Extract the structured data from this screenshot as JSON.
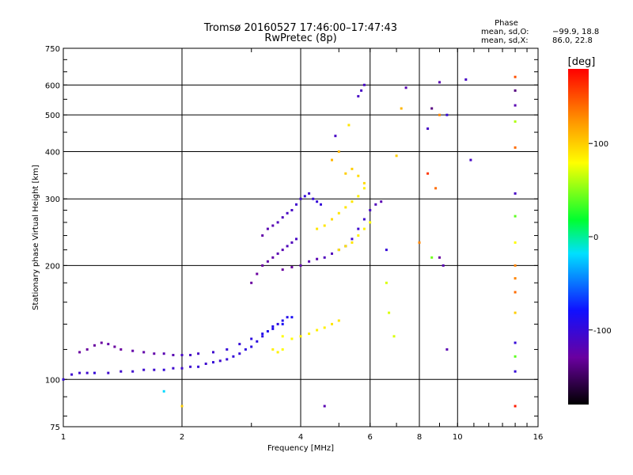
{
  "chart_data": {
    "type": "scatter",
    "title": "Tromsø 20160527 17:46:00–17:47:43",
    "subtitle": "RwPretec (8p)",
    "xlabel": "Frequency [MHz]",
    "ylabel": "Stationary phase Virtual Height [km]",
    "x_scale": "log",
    "y_scale": "log",
    "xlim": [
      1,
      16
    ],
    "ylim": [
      75,
      750
    ],
    "x_ticks": [
      1,
      2,
      4,
      6,
      8,
      10,
      16
    ],
    "x_tick_labels": [
      "1",
      "2",
      "4",
      "6",
      "8",
      "10",
      "16"
    ],
    "y_ticks": [
      75,
      100,
      200,
      300,
      400,
      500,
      600,
      750
    ],
    "y_tick_labels": [
      "75",
      "100",
      "200",
      "300",
      "400",
      "500",
      "600",
      "750"
    ],
    "grid": true,
    "color_scale": {
      "label": "[deg]",
      "range": [
        -180,
        180
      ],
      "ticks": [
        100,
        0,
        -100
      ],
      "tick_labels": [
        "100",
        "0",
        "-100"
      ],
      "stops": [
        "#000000",
        "#6a00a0",
        "#1010ff",
        "#00e0ff",
        "#00ff30",
        "#ffff00",
        "#ff9000",
        "#ff0000"
      ]
    },
    "phase_stats": {
      "title": "Phase",
      "o_label": "mean, sd,O:",
      "o_values": "−99.9, 18.8",
      "x_label": "mean, sd,X:",
      "x_values": "86.0, 22.8"
    },
    "series": [
      {
        "comment_free": true,
        "points": [
          [
            1.0,
            100,
            -100
          ],
          [
            1.05,
            103,
            -105
          ],
          [
            1.1,
            104,
            -105
          ],
          [
            1.15,
            104,
            -105
          ],
          [
            1.2,
            104,
            -100
          ],
          [
            1.3,
            104,
            -105
          ],
          [
            1.4,
            105,
            -105
          ],
          [
            1.5,
            105,
            -105
          ],
          [
            1.6,
            106,
            -105
          ],
          [
            1.7,
            106,
            -105
          ],
          [
            1.8,
            106,
            -100
          ],
          [
            1.9,
            107,
            -105
          ],
          [
            2.0,
            107,
            -105
          ],
          [
            2.1,
            108,
            -105
          ],
          [
            2.2,
            108,
            -100
          ],
          [
            2.3,
            110,
            -105
          ],
          [
            2.4,
            111,
            -100
          ],
          [
            2.5,
            112,
            -105
          ],
          [
            2.6,
            113,
            -100
          ],
          [
            2.7,
            115,
            -100
          ],
          [
            2.8,
            117,
            -100
          ],
          [
            2.9,
            120,
            -95
          ],
          [
            3.0,
            122,
            -95
          ],
          [
            3.1,
            126,
            -95
          ],
          [
            3.2,
            130,
            -95
          ],
          [
            3.3,
            134,
            -90
          ],
          [
            3.4,
            138,
            -90
          ],
          [
            3.5,
            140,
            -95
          ],
          [
            3.6,
            143,
            -90
          ],
          [
            3.7,
            146,
            -90
          ],
          [
            1.1,
            118,
            -130
          ],
          [
            1.15,
            120,
            -130
          ],
          [
            1.2,
            123,
            -130
          ],
          [
            1.25,
            125,
            -130
          ],
          [
            1.3,
            124,
            -125
          ],
          [
            1.35,
            122,
            -130
          ],
          [
            1.4,
            120,
            -130
          ],
          [
            1.5,
            119,
            -125
          ],
          [
            1.6,
            118,
            -125
          ],
          [
            1.7,
            117,
            -125
          ],
          [
            1.8,
            117,
            -120
          ],
          [
            1.9,
            116,
            -120
          ],
          [
            2.0,
            116,
            -110
          ],
          [
            2.1,
            116,
            -110
          ],
          [
            2.2,
            117,
            -110
          ],
          [
            2.4,
            118,
            -105
          ],
          [
            2.6,
            120,
            -100
          ],
          [
            2.8,
            124,
            -100
          ],
          [
            3.0,
            128,
            -95
          ],
          [
            3.2,
            132,
            -90
          ],
          [
            3.4,
            136,
            -90
          ],
          [
            3.6,
            140,
            -85
          ],
          [
            3.8,
            146,
            -85
          ],
          [
            3.0,
            180,
            -130
          ],
          [
            3.1,
            190,
            -130
          ],
          [
            3.2,
            200,
            -130
          ],
          [
            3.3,
            205,
            -125
          ],
          [
            3.4,
            210,
            -125
          ],
          [
            3.5,
            215,
            -120
          ],
          [
            3.6,
            220,
            -120
          ],
          [
            3.7,
            225,
            -115
          ],
          [
            3.8,
            230,
            -115
          ],
          [
            3.9,
            235,
            -110
          ],
          [
            3.2,
            240,
            -125
          ],
          [
            3.3,
            250,
            -120
          ],
          [
            3.4,
            255,
            -120
          ],
          [
            3.5,
            260,
            -115
          ],
          [
            3.6,
            268,
            -115
          ],
          [
            3.7,
            275,
            -110
          ],
          [
            3.8,
            280,
            -110
          ],
          [
            3.9,
            290,
            -105
          ],
          [
            4.0,
            300,
            -105
          ],
          [
            4.1,
            305,
            -100
          ],
          [
            4.2,
            310,
            -105
          ],
          [
            4.3,
            300,
            -100
          ],
          [
            4.4,
            295,
            -100
          ],
          [
            4.5,
            290,
            -100
          ],
          [
            3.6,
            195,
            -130
          ],
          [
            3.8,
            198,
            -130
          ],
          [
            4.0,
            200,
            -125
          ],
          [
            4.2,
            205,
            -120
          ],
          [
            4.4,
            208,
            -120
          ],
          [
            4.6,
            210,
            -115
          ],
          [
            4.8,
            215,
            -115
          ],
          [
            5.0,
            220,
            -110
          ],
          [
            5.2,
            225,
            -110
          ],
          [
            5.4,
            235,
            -105
          ],
          [
            5.6,
            250,
            -105
          ],
          [
            5.8,
            265,
            -105
          ],
          [
            6.0,
            280,
            -110
          ],
          [
            6.2,
            290,
            -115
          ],
          [
            6.4,
            295,
            -120
          ],
          [
            3.6,
            130,
            80
          ],
          [
            3.8,
            128,
            80
          ],
          [
            4.0,
            130,
            85
          ],
          [
            4.2,
            132,
            85
          ],
          [
            4.4,
            135,
            85
          ],
          [
            4.6,
            137,
            85
          ],
          [
            4.8,
            140,
            90
          ],
          [
            5.0,
            143,
            90
          ],
          [
            3.4,
            120,
            85
          ],
          [
            3.5,
            118,
            85
          ],
          [
            3.6,
            120,
            80
          ],
          [
            4.4,
            250,
            90
          ],
          [
            4.6,
            255,
            90
          ],
          [
            4.8,
            265,
            95
          ],
          [
            5.0,
            275,
            90
          ],
          [
            5.2,
            285,
            90
          ],
          [
            5.4,
            295,
            90
          ],
          [
            5.6,
            305,
            85
          ],
          [
            5.8,
            320,
            85
          ],
          [
            5.0,
            220,
            90
          ],
          [
            5.2,
            225,
            90
          ],
          [
            5.4,
            230,
            90
          ],
          [
            5.6,
            240,
            85
          ],
          [
            5.8,
            250,
            85
          ],
          [
            6.0,
            260,
            80
          ],
          [
            5.2,
            350,
            100
          ],
          [
            5.4,
            360,
            100
          ],
          [
            5.6,
            345,
            95
          ],
          [
            5.8,
            330,
            95
          ],
          [
            4.8,
            380,
            110
          ],
          [
            5.0,
            400,
            110
          ],
          [
            4.9,
            440,
            -110
          ],
          [
            5.3,
            470,
            90
          ],
          [
            5.8,
            600,
            -110
          ],
          [
            5.7,
            580,
            -110
          ],
          [
            5.6,
            560,
            -110
          ],
          [
            6.6,
            220,
            -100
          ],
          [
            6.6,
            180,
            70
          ],
          [
            6.7,
            150,
            70
          ],
          [
            6.9,
            130,
            70
          ],
          [
            7.0,
            390,
            100
          ],
          [
            7.2,
            520,
            110
          ],
          [
            7.4,
            590,
            -120
          ],
          [
            8.0,
            230,
            130
          ],
          [
            8.4,
            460,
            -110
          ],
          [
            8.6,
            210,
            45
          ],
          [
            9.0,
            210,
            -130
          ],
          [
            9.2,
            200,
            -120
          ],
          [
            9.4,
            120,
            -120
          ],
          [
            9.0,
            500,
            130
          ],
          [
            8.6,
            520,
            -140
          ],
          [
            8.8,
            320,
            140
          ],
          [
            9.0,
            610,
            -120
          ],
          [
            8.4,
            350,
            160
          ],
          [
            9.4,
            500,
            -100
          ],
          [
            10.5,
            620,
            -110
          ],
          [
            10.8,
            380,
            -110
          ],
          [
            14.0,
            630,
            150
          ],
          [
            14.0,
            580,
            -140
          ],
          [
            14.0,
            530,
            -120
          ],
          [
            14.0,
            480,
            60
          ],
          [
            14.0,
            410,
            140
          ],
          [
            14.0,
            310,
            -110
          ],
          [
            14.0,
            270,
            40
          ],
          [
            14.0,
            230,
            80
          ],
          [
            14.0,
            200,
            130
          ],
          [
            14.0,
            185,
            130
          ],
          [
            14.0,
            170,
            140
          ],
          [
            14.0,
            150,
            100
          ],
          [
            14.0,
            125,
            -100
          ],
          [
            14.0,
            115,
            40
          ],
          [
            14.0,
            105,
            -100
          ],
          [
            14.0,
            85,
            170
          ],
          [
            1.8,
            93,
            -20
          ],
          [
            2.0,
            85,
            100
          ],
          [
            4.6,
            85,
            -120
          ]
        ]
      }
    ]
  }
}
